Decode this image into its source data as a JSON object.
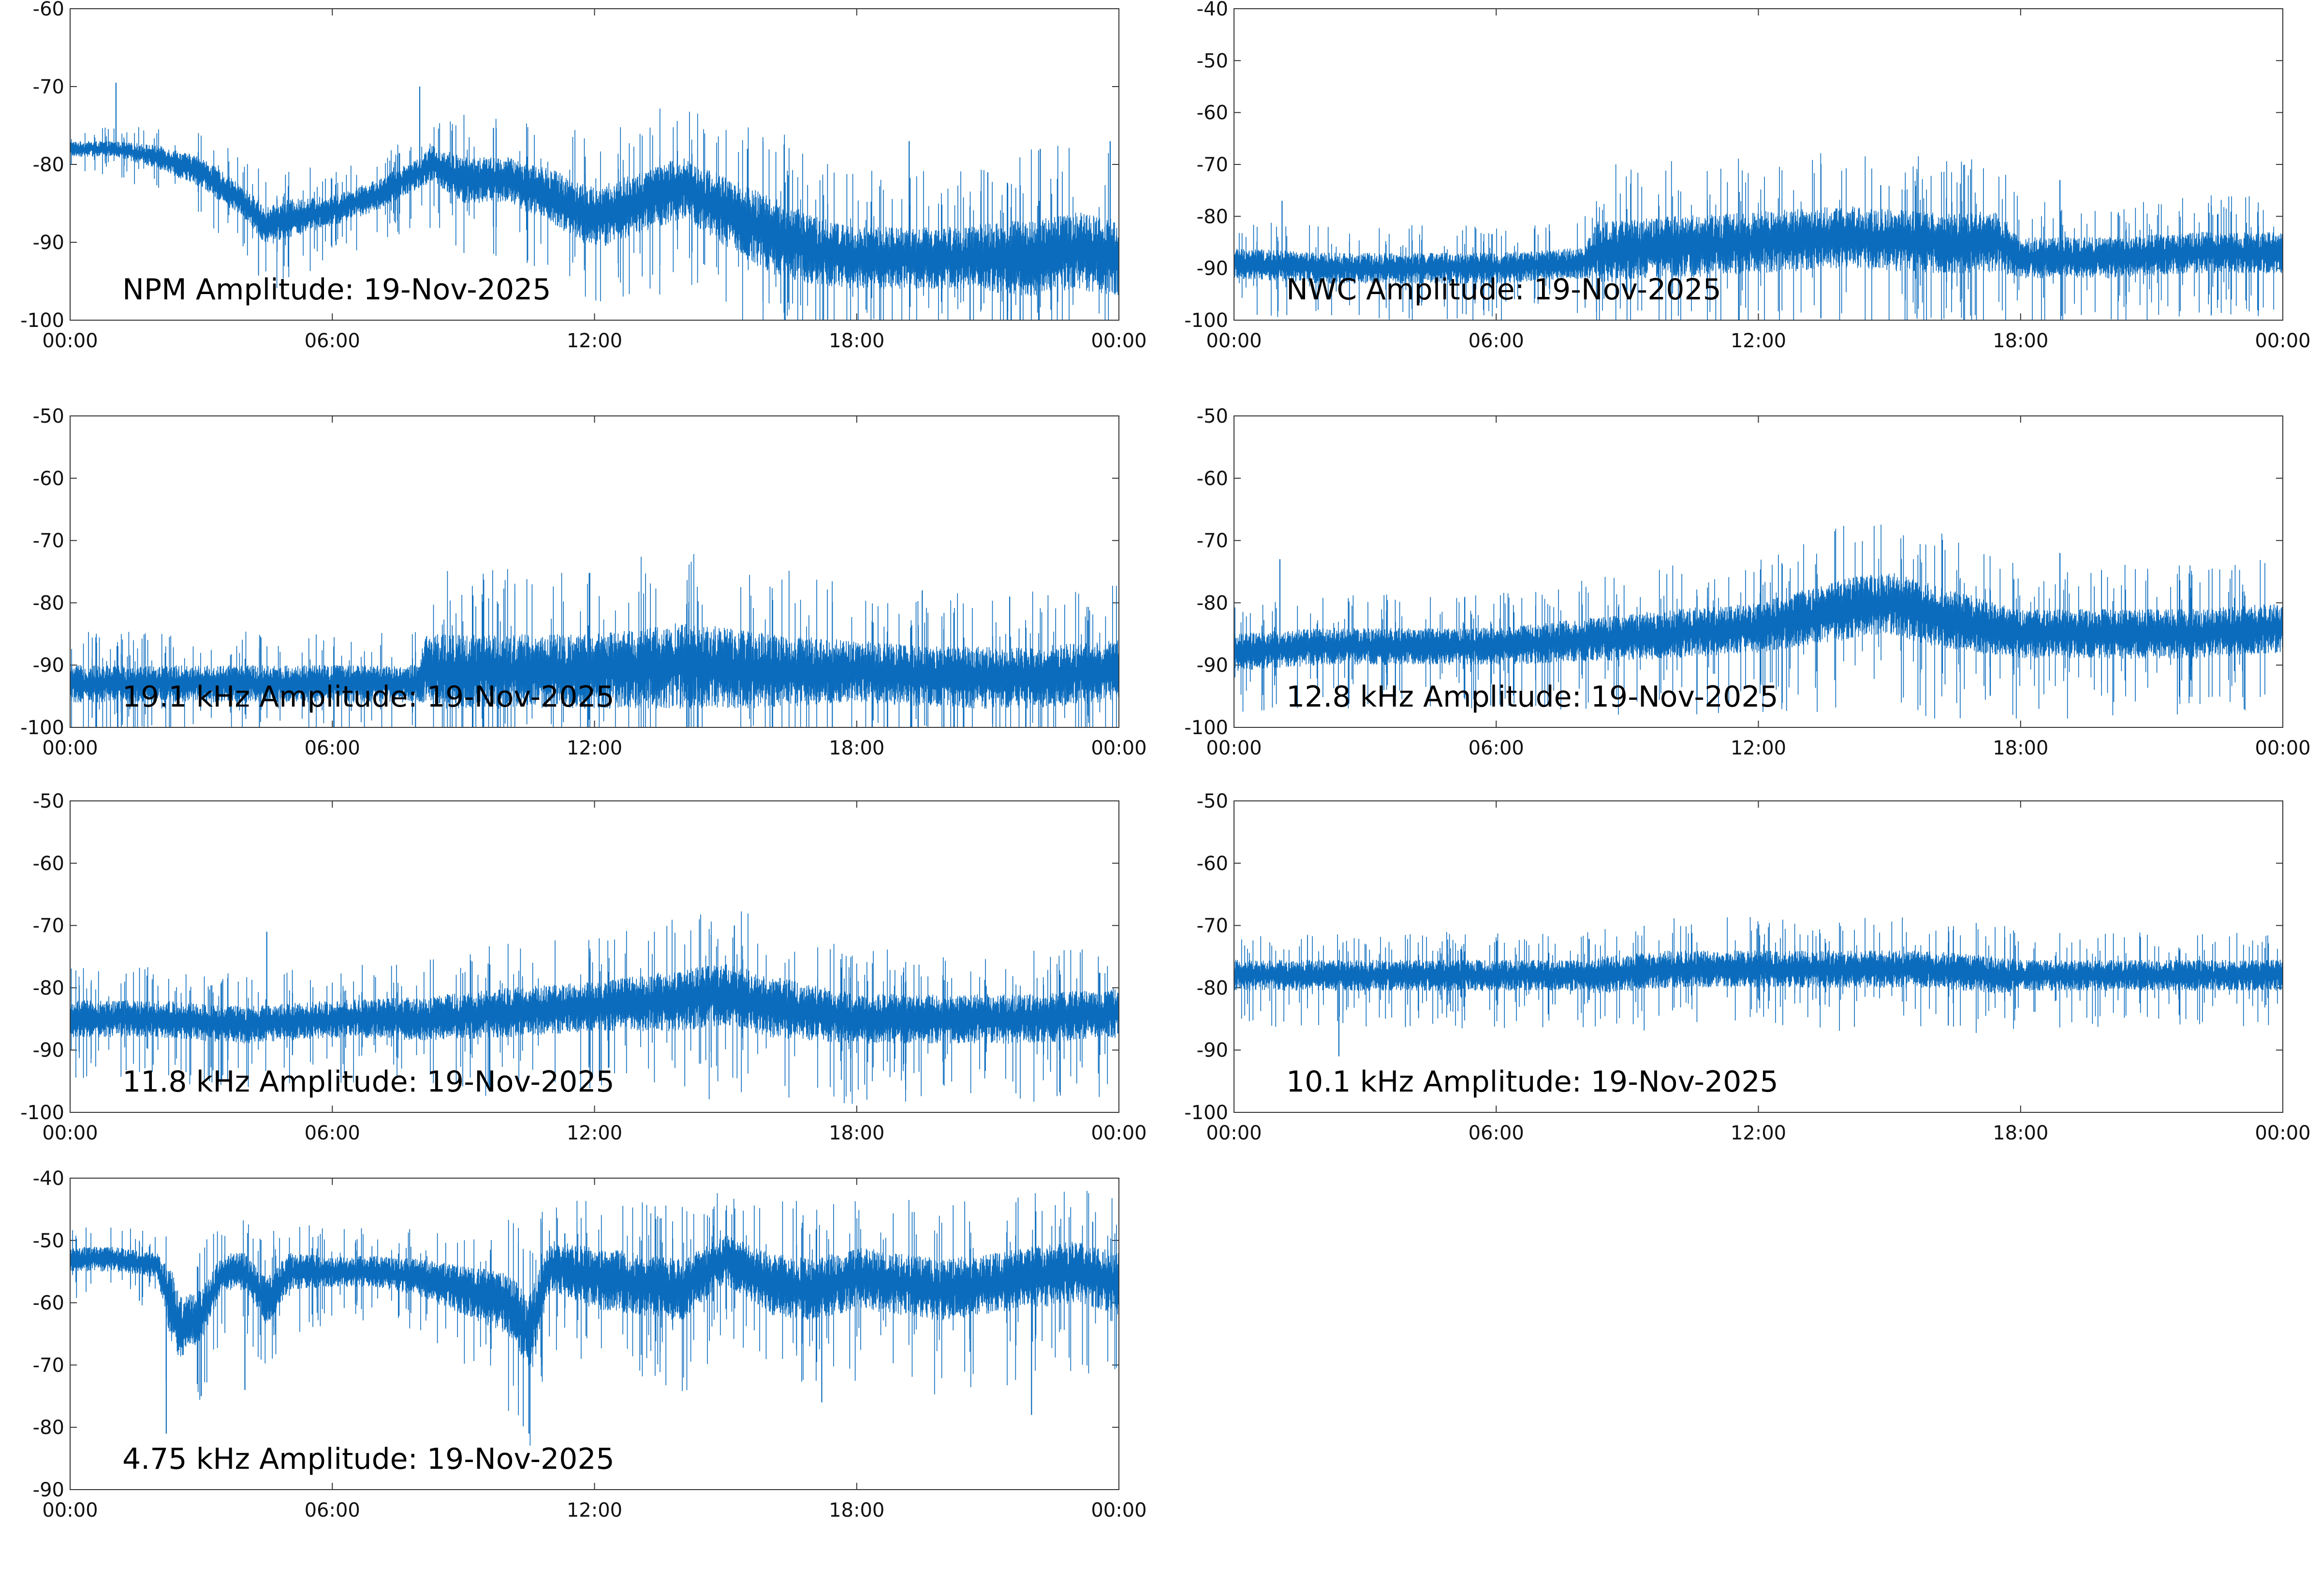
{
  "colors": {
    "series": "#0b6cbd",
    "axis": "#333333",
    "background": "#ffffff"
  },
  "chart_data": [
    {
      "type": "line",
      "title": "NPM Amplitude: 19-Nov-2025",
      "xlabel": "",
      "ylabel": "",
      "xlim": [
        0,
        24
      ],
      "ylim": [
        -100,
        -60
      ],
      "yticks": [
        -60,
        -70,
        -80,
        -90,
        -100
      ],
      "ytick_labels": [
        "-60",
        "-70",
        "-80",
        "-90",
        "-100"
      ],
      "xtick_labels": [
        "00:00",
        "06:00",
        "12:00",
        "18:00",
        "00:00"
      ],
      "series": [
        {
          "name": "NPM",
          "x": [
            0,
            1,
            2,
            3,
            4,
            4.5,
            5,
            6,
            7,
            8,
            8.3,
            9,
            10,
            11,
            12,
            13,
            14,
            15,
            16,
            17,
            18,
            19,
            20,
            21,
            22,
            23,
            24
          ],
          "center": [
            -78,
            -78,
            -79,
            -81,
            -85,
            -88,
            -87,
            -86,
            -84,
            -81,
            -80,
            -82,
            -82,
            -84,
            -87,
            -85,
            -83,
            -86,
            -89,
            -91,
            -92,
            -92,
            -92,
            -92,
            -92,
            -91,
            -92
          ],
          "spread": [
            1,
            1,
            1.5,
            2,
            2,
            2.5,
            2.5,
            2,
            2,
            2,
            2.5,
            3,
            3,
            3.5,
            4,
            4,
            4,
            4.5,
            5,
            4.5,
            4,
            4,
            4,
            4.5,
            5,
            5,
            5
          ],
          "spikes": [
            [
              1.05,
              -69.5
            ],
            [
              8.0,
              -70
            ],
            [
              15.5,
              -78
            ],
            [
              19.2,
              -77
            ],
            [
              21.0,
              -81
            ],
            [
              22.2,
              -78
            ],
            [
              23.8,
              -77
            ]
          ]
        }
      ]
    },
    {
      "type": "line",
      "title": "NWC Amplitude: 19-Nov-2025",
      "xlabel": "",
      "ylabel": "",
      "xlim": [
        0,
        24
      ],
      "ylim": [
        -100,
        -40
      ],
      "yticks": [
        -40,
        -50,
        -60,
        -70,
        -80,
        -90,
        -100
      ],
      "ytick_labels": [
        "-40",
        "-50",
        "-60",
        "-70",
        "-80",
        "-90",
        "-100"
      ],
      "xtick_labels": [
        "00:00",
        "06:00",
        "12:00",
        "18:00",
        "00:00"
      ],
      "series": [
        {
          "name": "NWC",
          "x": [
            0,
            2,
            4,
            6,
            8,
            8.3,
            10,
            12,
            14,
            16,
            17.5,
            18,
            20,
            22,
            24
          ],
          "center": [
            -89,
            -90,
            -90,
            -90,
            -89,
            -87,
            -86,
            -85,
            -84,
            -85,
            -85,
            -88,
            -88,
            -87,
            -87
          ],
          "spread": [
            3,
            3,
            3,
            3,
            3,
            6,
            6,
            6,
            6,
            6,
            6,
            4,
            4,
            4,
            4
          ],
          "spikes": [
            [
              1.1,
              -77
            ],
            [
              14.8,
              -74
            ],
            [
              18.9,
              -73
            ]
          ]
        }
      ]
    },
    {
      "type": "line",
      "title": "19.1 kHz Amplitude: 19-Nov-2025",
      "xlabel": "",
      "ylabel": "",
      "xlim": [
        0,
        24
      ],
      "ylim": [
        -100,
        -50
      ],
      "yticks": [
        -50,
        -60,
        -70,
        -80,
        -90,
        -100
      ],
      "ytick_labels": [
        "-50",
        "-60",
        "-70",
        "-80",
        "-90",
        "-100"
      ],
      "xtick_labels": [
        "00:00",
        "06:00",
        "12:00",
        "18:00",
        "00:00"
      ],
      "series": [
        {
          "name": "19.1 kHz",
          "x": [
            0,
            2,
            4,
            6,
            8,
            8.1,
            10,
            12,
            14,
            16,
            18,
            20,
            22,
            24
          ],
          "center": [
            -93,
            -93,
            -93,
            -93,
            -93,
            -91,
            -91,
            -91,
            -90,
            -91,
            -91,
            -92,
            -92,
            -91
          ],
          "spread": [
            3,
            3,
            3,
            3,
            3,
            6,
            6,
            6,
            7,
            6,
            5,
            5,
            5,
            5
          ],
          "spikes": [
            [
              19.5,
              -78
            ],
            [
              21.5,
              -79
            ]
          ]
        }
      ]
    },
    {
      "type": "line",
      "title": "12.8 kHz Amplitude: 19-Nov-2025",
      "xlabel": "",
      "ylabel": "",
      "xlim": [
        0,
        24
      ],
      "ylim": [
        -100,
        -50
      ],
      "yticks": [
        -50,
        -60,
        -70,
        -80,
        -90,
        -100
      ],
      "ytick_labels": [
        "-50",
        "-60",
        "-70",
        "-80",
        "-90",
        "-100"
      ],
      "xtick_labels": [
        "00:00",
        "06:00",
        "12:00",
        "18:00",
        "00:00"
      ],
      "series": [
        {
          "name": "12.8 kHz",
          "x": [
            0,
            2,
            4,
            6,
            8,
            10,
            12,
            14,
            15,
            16,
            18,
            20,
            22,
            24
          ],
          "center": [
            -88,
            -87,
            -87,
            -87,
            -86,
            -85,
            -84,
            -81,
            -80,
            -82,
            -85,
            -85,
            -85,
            -84
          ],
          "spread": [
            3,
            3,
            3,
            3,
            3.5,
            4,
            4,
            5,
            5,
            5,
            4,
            4,
            4,
            4
          ],
          "spikes": [
            [
              1.05,
              -73
            ],
            [
              18.9,
              -72
            ]
          ]
        }
      ]
    },
    {
      "type": "line",
      "title": "11.8 kHz Amplitude: 19-Nov-2025",
      "xlabel": "",
      "ylabel": "",
      "xlim": [
        0,
        24
      ],
      "ylim": [
        -100,
        -50
      ],
      "yticks": [
        -50,
        -60,
        -70,
        -80,
        -90,
        -100
      ],
      "ytick_labels": [
        "-50",
        "-60",
        "-70",
        "-80",
        "-90",
        "-100"
      ],
      "xtick_labels": [
        "00:00",
        "06:00",
        "12:00",
        "18:00",
        "00:00"
      ],
      "series": [
        {
          "name": "11.8 kHz",
          "x": [
            0,
            2,
            4,
            6,
            8,
            10,
            12,
            14,
            15,
            16,
            18,
            20,
            22,
            24
          ],
          "center": [
            -85,
            -85,
            -86,
            -85,
            -85,
            -84,
            -83,
            -82,
            -81,
            -83,
            -85,
            -85,
            -85,
            -84
          ],
          "spread": [
            3,
            3,
            3,
            3,
            3.5,
            4,
            4,
            5,
            5,
            5,
            4,
            4,
            4,
            4
          ],
          "spikes": [
            [
              4.5,
              -71
            ],
            [
              15.2,
              -70
            ]
          ]
        }
      ]
    },
    {
      "type": "line",
      "title": "10.1 kHz Amplitude: 19-Nov-2025",
      "xlabel": "",
      "ylabel": "",
      "xlim": [
        0,
        24
      ],
      "ylim": [
        -100,
        -50
      ],
      "yticks": [
        -50,
        -60,
        -70,
        -80,
        -90,
        -100
      ],
      "ytick_labels": [
        "-50",
        "-60",
        "-70",
        "-80",
        "-90",
        "-100"
      ],
      "xtick_labels": [
        "00:00",
        "06:00",
        "12:00",
        "18:00",
        "00:00"
      ],
      "series": [
        {
          "name": "10.1 kHz",
          "x": [
            0,
            2,
            4,
            6,
            8,
            8.3,
            10,
            12,
            14,
            16,
            17.5,
            18,
            20,
            22,
            24
          ],
          "center": [
            -78,
            -78,
            -78,
            -78,
            -78,
            -78,
            -77,
            -77,
            -77,
            -77,
            -78,
            -78,
            -78,
            -78,
            -78
          ],
          "spread": [
            2.5,
            2.5,
            2.5,
            2.5,
            2.5,
            3,
            3,
            3,
            3,
            3,
            3,
            2.5,
            2.5,
            2.5,
            2.5
          ],
          "spikes": [
            [
              2.4,
              -91
            ]
          ]
        }
      ]
    },
    {
      "type": "line",
      "title": "4.75 kHz Amplitude: 19-Nov-2025",
      "xlabel": "",
      "ylabel": "",
      "xlim": [
        0,
        24
      ],
      "ylim": [
        -90,
        -40
      ],
      "yticks": [
        -40,
        -50,
        -60,
        -70,
        -80,
        -90
      ],
      "ytick_labels": [
        "-40",
        "-50",
        "-60",
        "-70",
        "-80",
        "-90"
      ],
      "xtick_labels": [
        "00:00",
        "06:00",
        "12:00",
        "18:00",
        "00:00"
      ],
      "series": [
        {
          "name": "4.75 kHz",
          "x": [
            0,
            1,
            2,
            2.3,
            2.5,
            3,
            3.5,
            4,
            4.5,
            5,
            6,
            7,
            8,
            9,
            10,
            10.5,
            11,
            12,
            13,
            14,
            15,
            16,
            17,
            18,
            19,
            20,
            21,
            22,
            23,
            24
          ],
          "center": [
            -53,
            -53,
            -54,
            -60,
            -64,
            -62,
            -55,
            -55,
            -60,
            -55,
            -55,
            -55,
            -56,
            -58,
            -60,
            -65,
            -54,
            -56,
            -57,
            -58,
            -53,
            -57,
            -58,
            -56,
            -57,
            -58,
            -57,
            -56,
            -55,
            -57
          ],
          "spread": [
            2,
            2,
            2,
            6,
            5,
            4,
            3,
            3,
            4,
            3,
            2.5,
            2.5,
            3,
            4,
            5,
            6,
            4,
            5,
            5,
            5,
            4,
            5,
            5,
            5,
            5,
            5,
            5,
            5,
            5,
            5
          ],
          "spikes": [
            [
              2.2,
              -81
            ],
            [
              3.0,
              -75
            ],
            [
              4.0,
              -74
            ],
            [
              10.5,
              -81
            ],
            [
              17.2,
              -76
            ],
            [
              22.0,
              -78
            ],
            [
              23.4,
              -47
            ]
          ]
        }
      ]
    }
  ]
}
